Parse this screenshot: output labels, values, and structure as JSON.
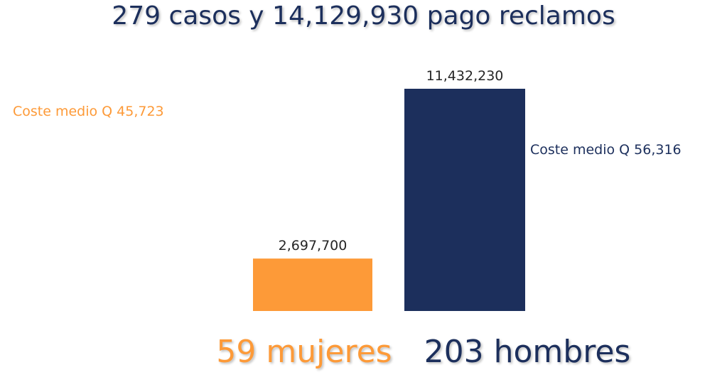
{
  "chart_data": {
    "type": "bar",
    "title": "279 casos y 14,129,930 pago reclamos",
    "categories": [
      "59 mujeres",
      "203 hombres"
    ],
    "values": [
      2697700,
      11432230
    ],
    "value_labels": [
      "2,697,700",
      "11,432,230"
    ],
    "colors": [
      "#fd9a38",
      "#1c2f5c"
    ],
    "annotations": [
      {
        "text": "Coste medio Q 45,723",
        "color": "#fd9a38"
      },
      {
        "text": "Coste medio Q 56,316",
        "color": "#1c2f5c"
      }
    ],
    "ylim": [
      0,
      11432230
    ],
    "grid": false,
    "legend": "none"
  }
}
